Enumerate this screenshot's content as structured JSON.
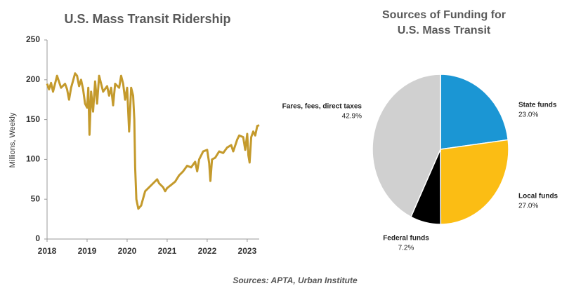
{
  "chart_data": [
    {
      "type": "line",
      "title": "U.S. Mass Transit Ridership",
      "ylabel": "Millions, Weekly",
      "color": "#c49a2c",
      "x": [
        2018.0,
        2018.05,
        2018.1,
        2018.15,
        2018.25,
        2018.35,
        2018.45,
        2018.5,
        2018.55,
        2018.6,
        2018.7,
        2018.75,
        2018.8,
        2018.85,
        2018.9,
        2018.95,
        2019.0,
        2019.03,
        2019.06,
        2019.1,
        2019.15,
        2019.2,
        2019.25,
        2019.3,
        2019.4,
        2019.5,
        2019.55,
        2019.6,
        2019.65,
        2019.7,
        2019.8,
        2019.85,
        2019.9,
        2019.95,
        2020.0,
        2020.05,
        2020.1,
        2020.15,
        2020.18,
        2020.2,
        2020.23,
        2020.28,
        2020.35,
        2020.45,
        2020.55,
        2020.65,
        2020.75,
        2020.8,
        2020.9,
        2020.95,
        2021.0,
        2021.1,
        2021.2,
        2021.3,
        2021.4,
        2021.5,
        2021.6,
        2021.7,
        2021.75,
        2021.8,
        2021.9,
        2022.0,
        2022.05,
        2022.08,
        2022.12,
        2022.2,
        2022.3,
        2022.4,
        2022.5,
        2022.6,
        2022.65,
        2022.75,
        2022.8,
        2022.9,
        2022.95,
        2023.0,
        2023.03,
        2023.06,
        2023.1,
        2023.15,
        2023.2,
        2023.25,
        2023.3
      ],
      "values": [
        195,
        188,
        196,
        185,
        205,
        190,
        195,
        188,
        175,
        190,
        208,
        205,
        192,
        200,
        188,
        170,
        165,
        190,
        131,
        185,
        160,
        198,
        170,
        205,
        185,
        192,
        180,
        190,
        168,
        195,
        190,
        205,
        195,
        175,
        190,
        135,
        190,
        180,
        150,
        90,
        50,
        38,
        42,
        60,
        65,
        70,
        75,
        70,
        65,
        60,
        64,
        68,
        72,
        80,
        85,
        92,
        90,
        97,
        85,
        100,
        110,
        112,
        95,
        73,
        100,
        102,
        110,
        108,
        115,
        118,
        110,
        125,
        130,
        128,
        112,
        132,
        105,
        96,
        128,
        135,
        130,
        142,
        143
      ],
      "xlim": [
        2018,
        2023.3
      ],
      "xticks": [
        2018,
        2019,
        2020,
        2021,
        2022,
        2023
      ],
      "ylim": [
        0,
        250
      ],
      "yticks": [
        0,
        50,
        100,
        150,
        200,
        250
      ]
    },
    {
      "type": "pie",
      "title": [
        "Sources of Funding for",
        "U.S. Mass Transit"
      ],
      "categories": [
        "State funds",
        "Local funds",
        "Federal funds",
        "Fares, fees, direct taxes"
      ],
      "values": [
        23.0,
        27.0,
        7.2,
        42.9
      ],
      "value_labels": [
        "23.0%",
        "27.0%",
        "7.2%",
        "42.9%"
      ],
      "colors": [
        "#1b96d4",
        "#fbbd14",
        "#000000",
        "#d0d0d0"
      ]
    }
  ],
  "source": "Sources: APTA, Urban Institute"
}
